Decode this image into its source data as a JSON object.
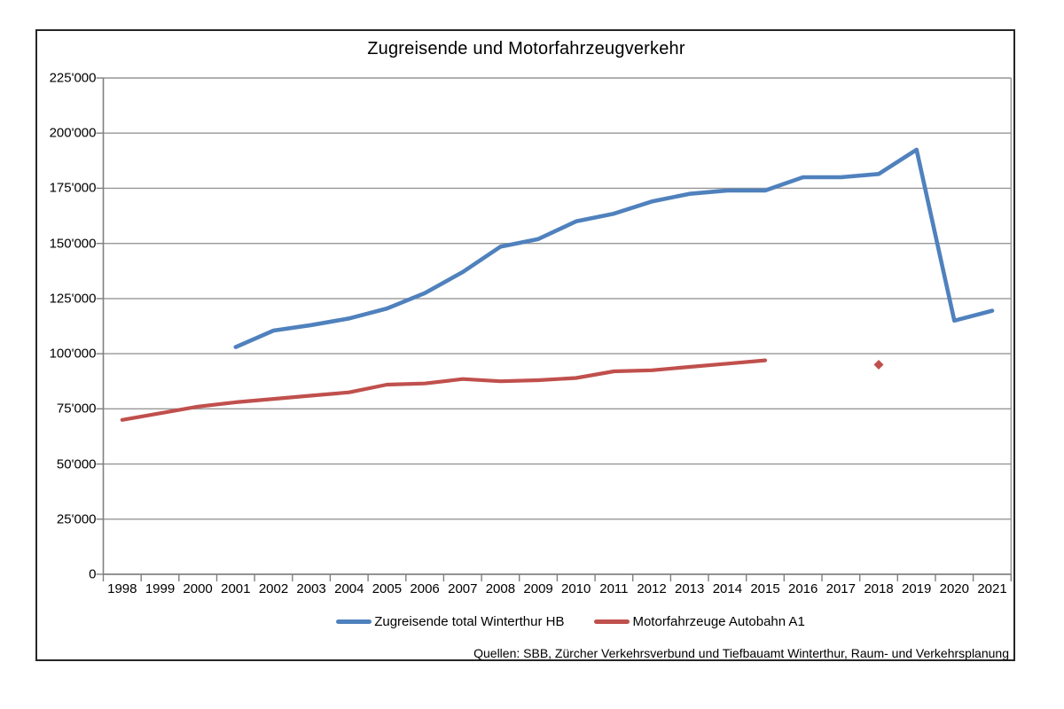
{
  "chart_data": {
    "type": "line",
    "title": "Zugreisende und Motorfahrzeugverkehr",
    "xlabel": "",
    "ylabel": "",
    "grid": true,
    "legend_position": "bottom",
    "categories": [
      "1998",
      "1999",
      "2000",
      "2001",
      "2002",
      "2003",
      "2004",
      "2005",
      "2006",
      "2007",
      "2008",
      "2009",
      "2010",
      "2011",
      "2012",
      "2013",
      "2014",
      "2015",
      "2016",
      "2017",
      "2018",
      "2019",
      "2020",
      "2021"
    ],
    "y_axis": {
      "min": 0,
      "max": 225000,
      "step": 25000,
      "tick_labels": [
        "0",
        "25'000",
        "50'000",
        "75'000",
        "100'000",
        "125'000",
        "150'000",
        "175'000",
        "200'000",
        "225'000"
      ]
    },
    "series": [
      {
        "name": "Zugreisende total Winterthur HB",
        "color": "#4F81BD",
        "start_category": "2001",
        "x": [
          "2001",
          "2002",
          "2003",
          "2004",
          "2005",
          "2006",
          "2007",
          "2008",
          "2009",
          "2010",
          "2011",
          "2012",
          "2013",
          "2014",
          "2015",
          "2016",
          "2017",
          "2018",
          "2019",
          "2020",
          "2021"
        ],
        "values": [
          103000,
          110500,
          113000,
          116000,
          120500,
          127500,
          137000,
          148500,
          152000,
          160000,
          163500,
          169000,
          172500,
          174000,
          174000,
          180000,
          180000,
          181500,
          192500,
          115000,
          119500
        ]
      },
      {
        "name": "Motorfahrzeuge Autobahn A1",
        "color": "#C0504D",
        "start_category": "1998",
        "x": [
          "1998",
          "1999",
          "2000",
          "2001",
          "2002",
          "2003",
          "2004",
          "2005",
          "2006",
          "2007",
          "2008",
          "2009",
          "2010",
          "2011",
          "2012",
          "2013",
          "2014",
          "2015"
        ],
        "values": [
          70000,
          73000,
          76000,
          78000,
          79500,
          81000,
          82500,
          86000,
          86500,
          88500,
          87500,
          88000,
          89000,
          92000,
          92500,
          94000,
          95500,
          97000
        ],
        "isolated_point": {
          "x": "2018",
          "value": 95000,
          "marker": "diamond"
        }
      }
    ]
  },
  "source_note": "Quellen: SBB, Zürcher Verkehrsverbund und Tiefbauamt Winterthur, Raum- und Verkehrsplanung",
  "colors": {
    "series_blue": "#4F81BD",
    "series_red": "#C0504D",
    "gridline": "#969696",
    "axis": "#7f7f7f",
    "frame_border": "#262626",
    "background": "#ffffff"
  }
}
